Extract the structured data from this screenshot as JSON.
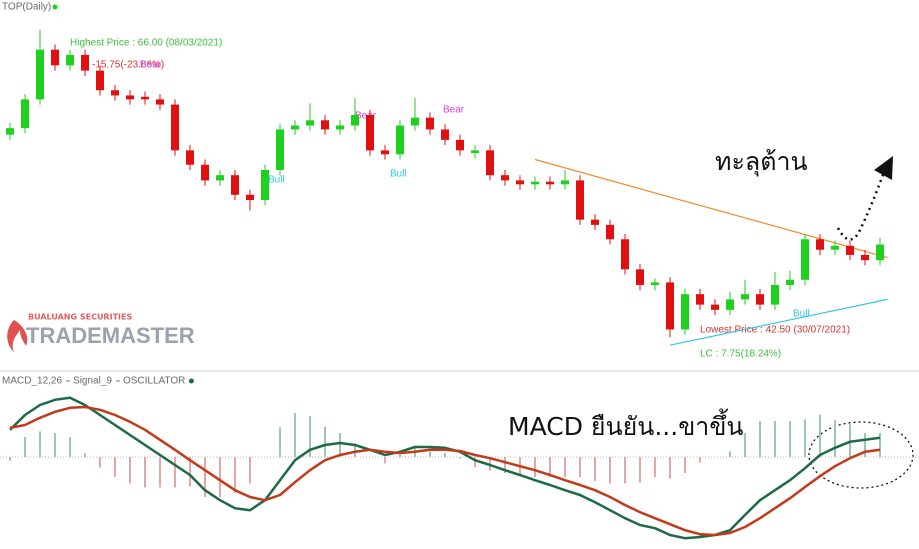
{
  "chart_data": [
    {
      "type": "candlestick",
      "title": "TOP(Daily)",
      "ylim": [
        40,
        68.3
      ],
      "up_color": "#1fd11f",
      "down_color": "#e01010",
      "candles": [
        [
          58.0,
          58.9,
          57.6,
          58.5
        ],
        [
          58.5,
          61.1,
          58.1,
          60.7
        ],
        [
          60.7,
          66.0,
          60.3,
          64.5
        ],
        [
          64.5,
          64.9,
          62.9,
          63.3
        ],
        [
          63.3,
          64.5,
          62.9,
          64.1
        ],
        [
          64.1,
          64.5,
          62.5,
          62.9
        ],
        [
          62.9,
          63.3,
          61.0,
          61.4
        ],
        [
          61.4,
          61.8,
          60.6,
          61.0
        ],
        [
          61.0,
          61.4,
          60.3,
          60.7
        ],
        [
          60.9,
          61.3,
          60.3,
          60.7
        ],
        [
          60.7,
          61.1,
          59.9,
          60.3
        ],
        [
          60.3,
          60.7,
          56.4,
          56.8
        ],
        [
          56.8,
          57.2,
          55.3,
          55.7
        ],
        [
          55.7,
          56.1,
          54.1,
          54.5
        ],
        [
          54.5,
          55.3,
          54.1,
          54.9
        ],
        [
          54.9,
          55.3,
          53.0,
          53.4
        ],
        [
          53.4,
          53.8,
          52.2,
          53.0
        ],
        [
          53.0,
          55.7,
          52.6,
          55.3
        ],
        [
          55.3,
          58.8,
          54.9,
          58.4
        ],
        [
          58.4,
          59.1,
          58.0,
          58.7
        ],
        [
          58.7,
          60.4,
          58.3,
          59.1
        ],
        [
          59.1,
          59.5,
          58.0,
          58.4
        ],
        [
          58.4,
          59.1,
          58.0,
          58.7
        ],
        [
          58.7,
          60.8,
          58.3,
          59.5
        ],
        [
          59.5,
          59.9,
          56.4,
          56.8
        ],
        [
          56.8,
          57.2,
          56.1,
          56.5
        ],
        [
          56.5,
          59.1,
          56.1,
          58.7
        ],
        [
          58.7,
          60.8,
          58.3,
          59.3
        ],
        [
          59.3,
          59.7,
          58.0,
          58.4
        ],
        [
          58.4,
          58.8,
          57.2,
          57.6
        ],
        [
          57.6,
          58.0,
          56.4,
          56.8
        ],
        [
          56.6,
          57.2,
          56.2,
          56.8
        ],
        [
          56.8,
          57.2,
          54.5,
          54.9
        ],
        [
          54.9,
          55.3,
          54.1,
          54.5
        ],
        [
          54.5,
          54.9,
          53.8,
          54.2
        ],
        [
          54.2,
          54.8,
          53.8,
          54.4
        ],
        [
          54.4,
          54.8,
          53.8,
          54.2
        ],
        [
          54.2,
          55.3,
          53.8,
          54.5
        ],
        [
          54.5,
          54.9,
          51.1,
          51.5
        ],
        [
          51.5,
          51.9,
          50.7,
          51.1
        ],
        [
          51.1,
          51.5,
          49.6,
          50.0
        ],
        [
          50.0,
          50.4,
          47.3,
          47.7
        ],
        [
          47.7,
          48.1,
          46.1,
          46.5
        ],
        [
          46.5,
          47.0,
          46.1,
          46.7
        ],
        [
          46.7,
          47.1,
          42.5,
          43.1
        ],
        [
          43.1,
          46.2,
          42.7,
          45.8
        ],
        [
          45.8,
          46.2,
          44.6,
          45.0
        ],
        [
          45.0,
          45.4,
          44.2,
          44.6
        ],
        [
          44.6,
          46.0,
          44.2,
          45.4
        ],
        [
          45.4,
          46.9,
          45.0,
          45.8
        ],
        [
          45.8,
          46.2,
          44.6,
          45.0
        ],
        [
          45.0,
          47.5,
          44.6,
          46.5
        ],
        [
          46.5,
          47.6,
          46.1,
          46.9
        ],
        [
          46.9,
          50.4,
          46.5,
          50.0
        ],
        [
          50.0,
          50.4,
          48.8,
          49.2
        ],
        [
          49.2,
          49.9,
          48.8,
          49.5
        ],
        [
          49.5,
          49.9,
          48.4,
          48.8
        ],
        [
          48.8,
          49.2,
          48.0,
          48.4
        ],
        [
          48.4,
          50.1,
          48.0,
          49.6
        ]
      ],
      "trendlines": [
        {
          "color": "#f08a30",
          "x": [
            35,
            58.5
          ],
          "y": [
            56.1,
            48.6
          ]
        },
        {
          "color": "#30c8e0",
          "x": [
            44,
            58.5
          ],
          "y": [
            41.9,
            45.4
          ]
        }
      ],
      "annotations": [
        "Highest Price : 66.00 (08/03/2021)",
        "-15.75(-23.86%)",
        "Lowest Price : 42.50 (30/07/2021)",
        "LC : 7.75(18.24%)",
        "Bull",
        "Bull",
        "Bull",
        "Bear",
        "Bear",
        "Bear",
        "ทะลุต้าน"
      ]
    },
    {
      "type": "line",
      "ylim": [
        -2.3,
        1.8
      ],
      "series": [
        {
          "name": "MACD_12,26",
          "color": "#1d6b45",
          "values": [
            0.68,
            1.05,
            1.3,
            1.43,
            1.48,
            1.3,
            1.05,
            0.8,
            0.55,
            0.3,
            0.05,
            -0.2,
            -0.45,
            -0.83,
            -1.08,
            -1.28,
            -1.33,
            -1.08,
            -0.58,
            -0.08,
            0.18,
            0.3,
            0.35,
            0.3,
            0.18,
            0.05,
            0.13,
            0.25,
            0.25,
            0.23,
            0.13,
            -0.08,
            -0.2,
            -0.33,
            -0.45,
            -0.58,
            -0.7,
            -0.83,
            -0.95,
            -1.13,
            -1.33,
            -1.53,
            -1.7,
            -1.78,
            -1.95,
            -2.03,
            -2.0,
            -1.95,
            -1.83,
            -1.45,
            -1.08,
            -0.83,
            -0.58,
            -0.28,
            0.05,
            0.23,
            0.38,
            0.43,
            0.48
          ]
        },
        {
          "name": "Signal_9",
          "color": "#c23a1a",
          "values": [
            0.73,
            0.8,
            0.98,
            1.13,
            1.23,
            1.25,
            1.18,
            1.05,
            0.88,
            0.68,
            0.43,
            0.18,
            -0.08,
            -0.33,
            -0.58,
            -0.83,
            -1.0,
            -1.08,
            -0.95,
            -0.63,
            -0.33,
            -0.08,
            0.05,
            0.13,
            0.18,
            0.13,
            0.1,
            0.13,
            0.18,
            0.18,
            0.15,
            0.05,
            -0.03,
            -0.13,
            -0.23,
            -0.33,
            -0.45,
            -0.58,
            -0.7,
            -0.83,
            -1.0,
            -1.2,
            -1.38,
            -1.53,
            -1.68,
            -1.83,
            -1.93,
            -1.95,
            -1.9,
            -1.75,
            -1.53,
            -1.28,
            -1.03,
            -0.75,
            -0.48,
            -0.23,
            -0.03,
            0.13,
            0.18
          ]
        },
        {
          "name": "OSCILLATOR",
          "type": "bar",
          "color": "#9cc7a8",
          "down_color": "#e8a5a5",
          "values": [
            -0.1,
            0.5,
            0.64,
            0.6,
            0.5,
            0.1,
            -0.26,
            -0.5,
            -0.66,
            -0.76,
            -0.76,
            -0.76,
            -0.74,
            -1.0,
            -1.0,
            -0.9,
            -0.66,
            0,
            0.74,
            1.1,
            1.02,
            0.76,
            0.6,
            0.34,
            0,
            -0.16,
            0.06,
            0.24,
            0.14,
            0.1,
            -0.04,
            -0.26,
            -0.34,
            -0.4,
            -0.44,
            -0.5,
            -0.5,
            -0.5,
            -0.5,
            -0.6,
            -0.66,
            -0.66,
            -0.64,
            -0.5,
            -0.54,
            -0.4,
            -0.14,
            0,
            0.14,
            0.6,
            0.9,
            0.9,
            0.9,
            0.94,
            1.06,
            0.92,
            0.82,
            0.6,
            0.6
          ]
        }
      ],
      "annotations": [
        "MACD ยืนยัน...ขาขึ้น"
      ]
    }
  ],
  "logo": {
    "company": "BUALUANG SECURITIES",
    "product": "TRADEMASTER"
  }
}
